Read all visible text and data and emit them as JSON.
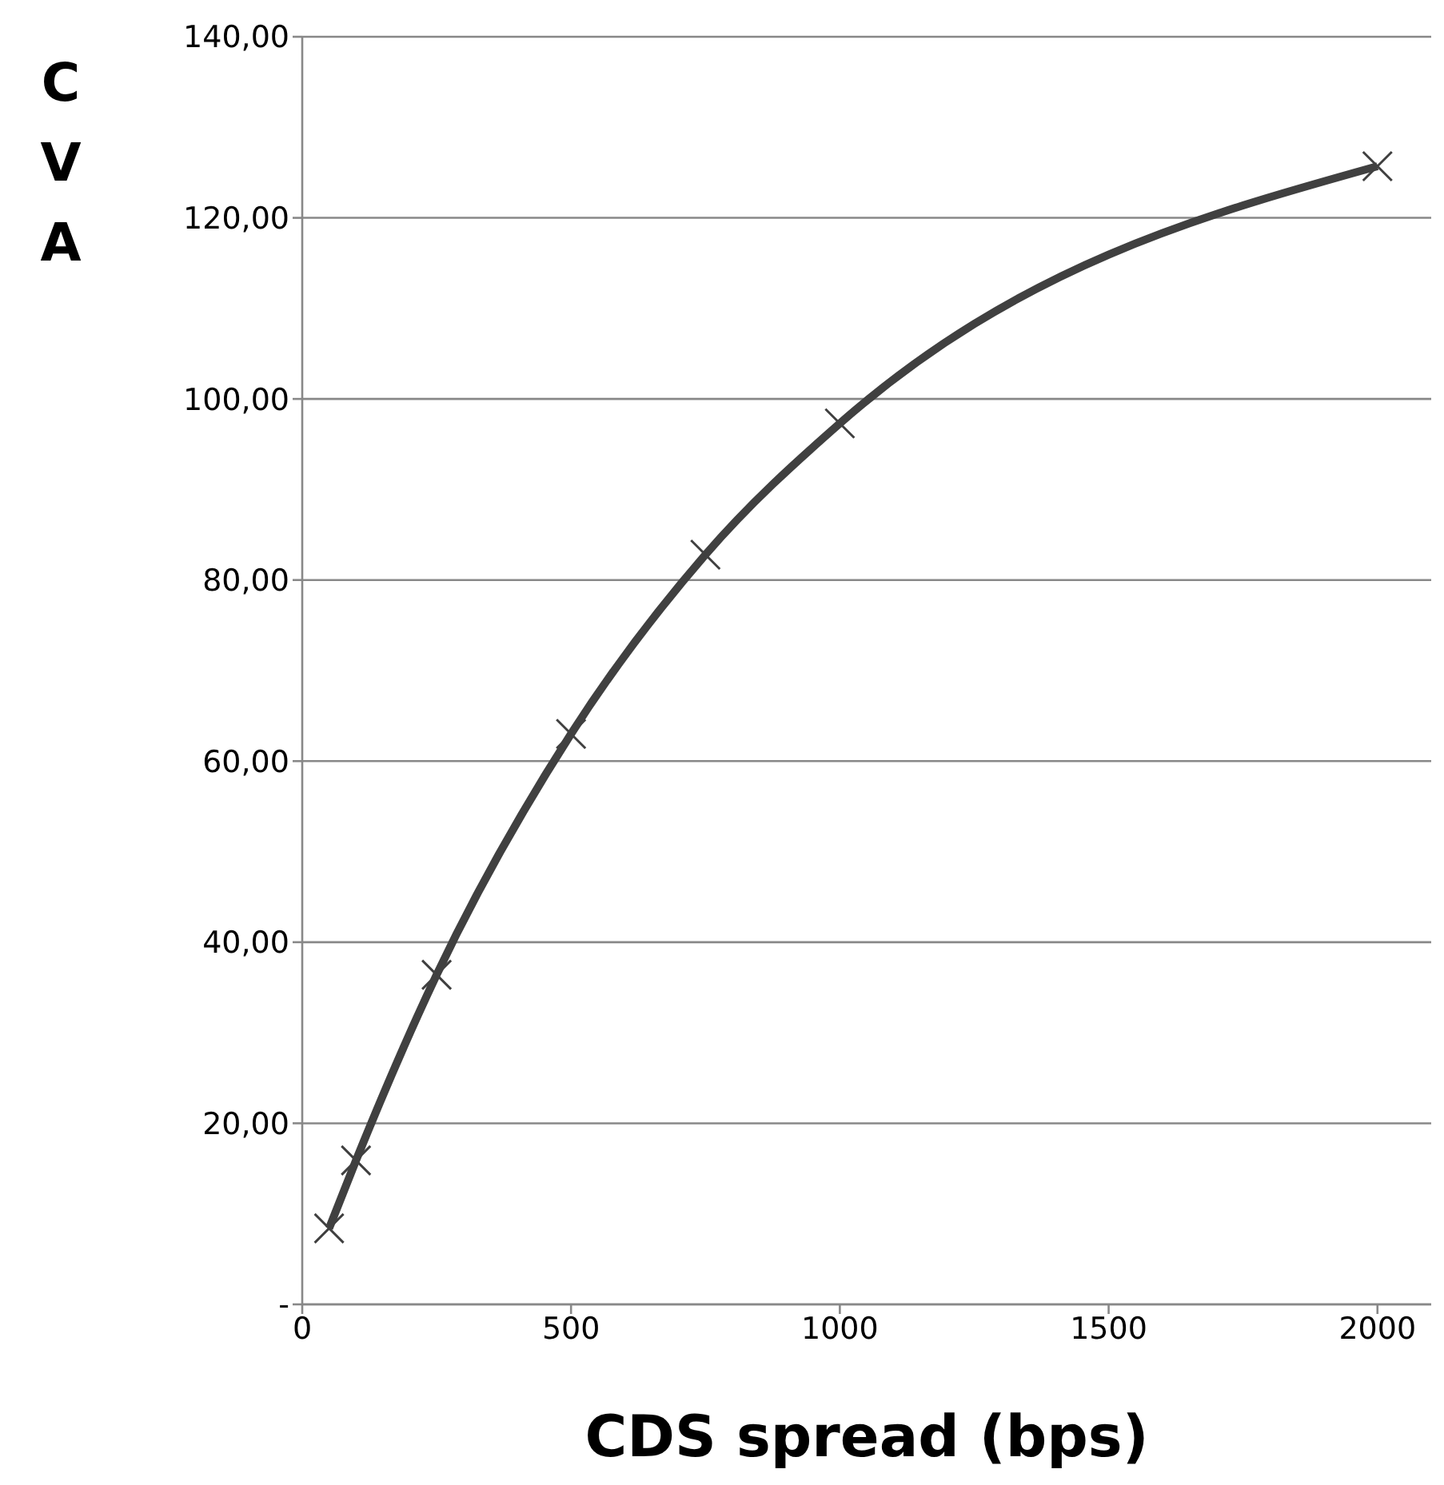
{
  "chart_data": {
    "type": "line",
    "xlabel": "CDS spread (bps)",
    "ylabel": "CVA",
    "x": [
      50,
      100,
      250,
      500,
      750,
      1000,
      2000
    ],
    "series": [
      {
        "color": "#404040",
        "values": [
          8.4,
          15.9,
          36.4,
          63.0,
          82.8,
          97.3,
          125.7
        ]
      }
    ],
    "xlim": [
      0,
      2100
    ],
    "xticks": [
      0,
      500,
      1000,
      1500,
      2000
    ],
    "ylim": [
      0,
      140
    ],
    "yticks": [
      {
        "value": 0,
        "label": "-"
      },
      {
        "value": 20,
        "label": "20,00"
      },
      {
        "value": 40,
        "label": "40,00"
      },
      {
        "value": 60,
        "label": "60,00"
      },
      {
        "value": 80,
        "label": "80,00"
      },
      {
        "value": 100,
        "label": "100,00"
      },
      {
        "value": 120,
        "label": "120,00"
      },
      {
        "value": 140,
        "label": "140,00"
      }
    ],
    "grid": "y",
    "marker": "cross",
    "line_style": "solid"
  }
}
